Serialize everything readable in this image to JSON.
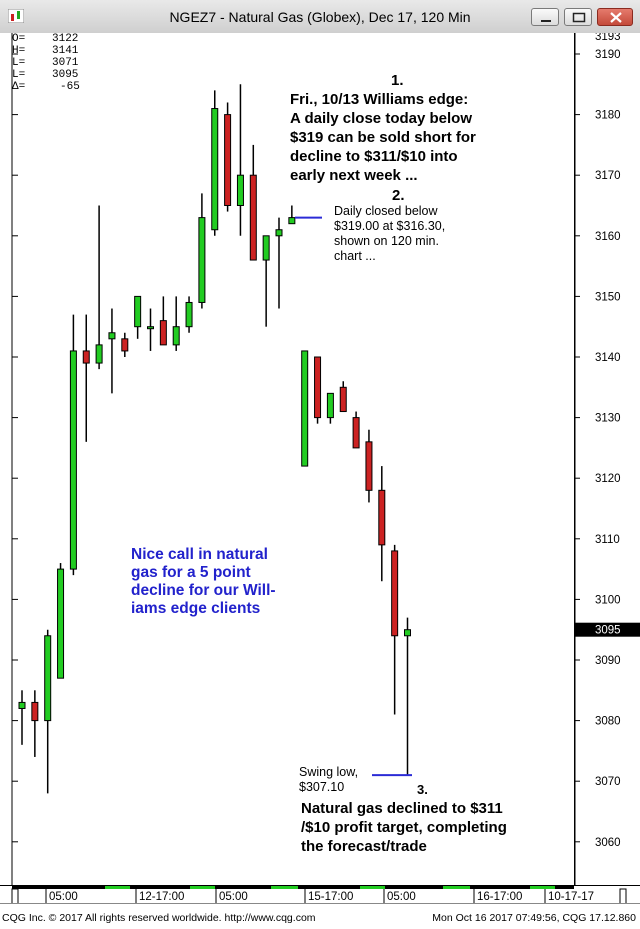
{
  "window": {
    "title": "NGEZ7 - Natural Gas (Globex), Dec 17, 120 Min"
  },
  "icons": {
    "app": "chart-app-icon",
    "minimize": "minimize-icon",
    "maximize": "maximize-icon",
    "close": "close-icon"
  },
  "info_panel": [
    {
      "label": "O=",
      "value": "3122"
    },
    {
      "label": "H=",
      "value": "3141"
    },
    {
      "label": "L=",
      "value": "3071"
    },
    {
      "label": "L=",
      "value": "3095"
    },
    {
      "label": "Δ=",
      "value": "-65"
    }
  ],
  "annotations": {
    "a1_num": "1.",
    "a1_text": [
      "Fri., 10/13 Williams edge:",
      "A daily close today below",
      "$319 can be sold short for",
      "decline to $311/$10 into",
      "early next week ..."
    ],
    "a2_num": "2.",
    "a2_text": [
      "Daily closed below",
      "$319.00 at $316.30,",
      "shown on 120 min.",
      "chart ..."
    ],
    "nice_call": [
      "Nice call in natural",
      "gas for a 5 point",
      "decline for our Will-",
      "iams edge clients"
    ],
    "swing_low": [
      "Swing low,",
      "$307.10"
    ],
    "a3_num": "3.",
    "a3_text": [
      "Natural gas declined to $311",
      "/$10 profit target, completing",
      "the forecast/trade"
    ]
  },
  "footer": {
    "left": "CQG Inc. © 2017 All rights reserved worldwide. http://www.cqg.com",
    "right": "Mon Oct 16 2017 07:49:56, CQG 17.12.860"
  },
  "colors": {
    "up": "#22cc22",
    "down": "#cc2222",
    "annotation_blue": "#2222cc",
    "line_blue": "#2b2bd6"
  },
  "chart_data": {
    "type": "candlestick",
    "y_ticks": [
      3190,
      3180,
      3170,
      3160,
      3150,
      3140,
      3130,
      3120,
      3110,
      3100,
      3090,
      3080,
      3070,
      3060
    ],
    "y_top_label": "3193",
    "current_price_label": "3095",
    "x_tick_labels": [
      "05:00",
      "12-17:00",
      "05:00",
      "15-17:00",
      "05:00",
      "16-17:00",
      "10-17-17"
    ],
    "ylim": [
      3053,
      3195
    ],
    "candles": [
      {
        "o": 3082,
        "h": 3085,
        "l": 3076,
        "c": 3083
      },
      {
        "o": 3083,
        "h": 3085,
        "l": 3074,
        "c": 3080
      },
      {
        "o": 3080,
        "h": 3095,
        "l": 3068,
        "c": 3094
      },
      {
        "o": 3087,
        "h": 3106,
        "l": 3087,
        "c": 3105
      },
      {
        "o": 3105,
        "h": 3147,
        "l": 3104,
        "c": 3141
      },
      {
        "o": 3141,
        "h": 3147,
        "l": 3126,
        "c": 3139
      },
      {
        "o": 3139,
        "h": 3165,
        "l": 3138,
        "c": 3142
      },
      {
        "o": 3143,
        "h": 3148,
        "l": 3134,
        "c": 3144
      },
      {
        "o": 3143,
        "h": 3144,
        "l": 3140,
        "c": 3141
      },
      {
        "o": 3145,
        "h": 3150,
        "l": 3143,
        "c": 3150
      },
      {
        "o": 3145,
        "h": 3148,
        "l": 3141,
        "c": 3145
      },
      {
        "o": 3146,
        "h": 3150,
        "l": 3142,
        "c": 3142
      },
      {
        "o": 3142,
        "h": 3150,
        "l": 3141,
        "c": 3145
      },
      {
        "o": 3145,
        "h": 3150,
        "l": 3144,
        "c": 3149
      },
      {
        "o": 3149,
        "h": 3167,
        "l": 3148,
        "c": 3163
      },
      {
        "o": 3161,
        "h": 3184,
        "l": 3160,
        "c": 3181
      },
      {
        "o": 3180,
        "h": 3182,
        "l": 3164,
        "c": 3165
      },
      {
        "o": 3165,
        "h": 3185,
        "l": 3160,
        "c": 3170
      },
      {
        "o": 3170,
        "h": 3175,
        "l": 3156,
        "c": 3156
      },
      {
        "o": 3156,
        "h": 3160,
        "l": 3145,
        "c": 3160
      },
      {
        "o": 3160,
        "h": 3163,
        "l": 3148,
        "c": 3161
      },
      {
        "o": 3162,
        "h": 3165,
        "l": 3162,
        "c": 3163
      },
      {
        "o": 3122,
        "h": 3141,
        "l": 3122,
        "c": 3141
      },
      {
        "o": 3140,
        "h": 3140,
        "l": 3129,
        "c": 3130
      },
      {
        "o": 3130,
        "h": 3134,
        "l": 3129,
        "c": 3134
      },
      {
        "o": 3135,
        "h": 3136,
        "l": 3131,
        "c": 3131
      },
      {
        "o": 3130,
        "h": 3131,
        "l": 3125,
        "c": 3125
      },
      {
        "o": 3126,
        "h": 3128,
        "l": 3116,
        "c": 3118
      },
      {
        "o": 3118,
        "h": 3122,
        "l": 3103,
        "c": 3109
      },
      {
        "o": 3108,
        "h": 3109,
        "l": 3081,
        "c": 3094
      },
      {
        "o": 3094,
        "h": 3097,
        "l": 3071,
        "c": 3095
      }
    ]
  }
}
